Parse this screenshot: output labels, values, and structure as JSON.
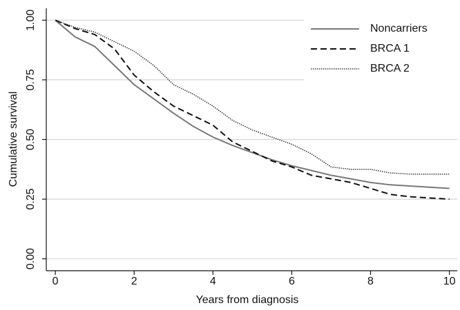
{
  "chart_data": {
    "type": "line",
    "xlabel": "Years from diagnosis",
    "ylabel": "Cumulative survival",
    "x": [
      0,
      0.5,
      1,
      1.5,
      2,
      2.5,
      3,
      3.5,
      4,
      4.5,
      5,
      5.5,
      6,
      6.5,
      7,
      7.5,
      8,
      8.5,
      9,
      9.5,
      10
    ],
    "series": [
      {
        "name": "Noncarriers",
        "color": "#777777",
        "dash": "solid",
        "values": [
          1.0,
          0.93,
          0.89,
          0.81,
          0.73,
          0.67,
          0.61,
          0.555,
          0.51,
          0.475,
          0.445,
          0.415,
          0.39,
          0.37,
          0.35,
          0.335,
          0.32,
          0.31,
          0.305,
          0.3,
          0.295
        ]
      },
      {
        "name": "BRCA 1",
        "color": "#111111",
        "dash": "dashed",
        "values": [
          1.0,
          0.965,
          0.94,
          0.88,
          0.77,
          0.7,
          0.64,
          0.6,
          0.56,
          0.49,
          0.45,
          0.41,
          0.385,
          0.35,
          0.335,
          0.32,
          0.295,
          0.27,
          0.26,
          0.255,
          0.25
        ]
      },
      {
        "name": "BRCA 2",
        "color": "#333333",
        "dash": "dotted",
        "values": [
          1.0,
          0.97,
          0.95,
          0.91,
          0.87,
          0.81,
          0.73,
          0.69,
          0.64,
          0.58,
          0.54,
          0.51,
          0.48,
          0.44,
          0.385,
          0.375,
          0.375,
          0.36,
          0.355,
          0.355,
          0.355
        ]
      }
    ],
    "xlim": [
      -0.23,
      10.2
    ],
    "ylim": [
      -0.05,
      1.05
    ],
    "xticks": [
      0,
      2,
      4,
      6,
      8,
      10
    ],
    "yticks": [
      {
        "value": 0,
        "label": "0.00"
      },
      {
        "value": 0.25,
        "label": "0.25"
      },
      {
        "value": 0.5,
        "label": "0.50"
      },
      {
        "value": 0.75,
        "label": "0.75"
      },
      {
        "value": 1,
        "label": "1.00"
      }
    ],
    "grid": true,
    "legend": "upper right"
  }
}
